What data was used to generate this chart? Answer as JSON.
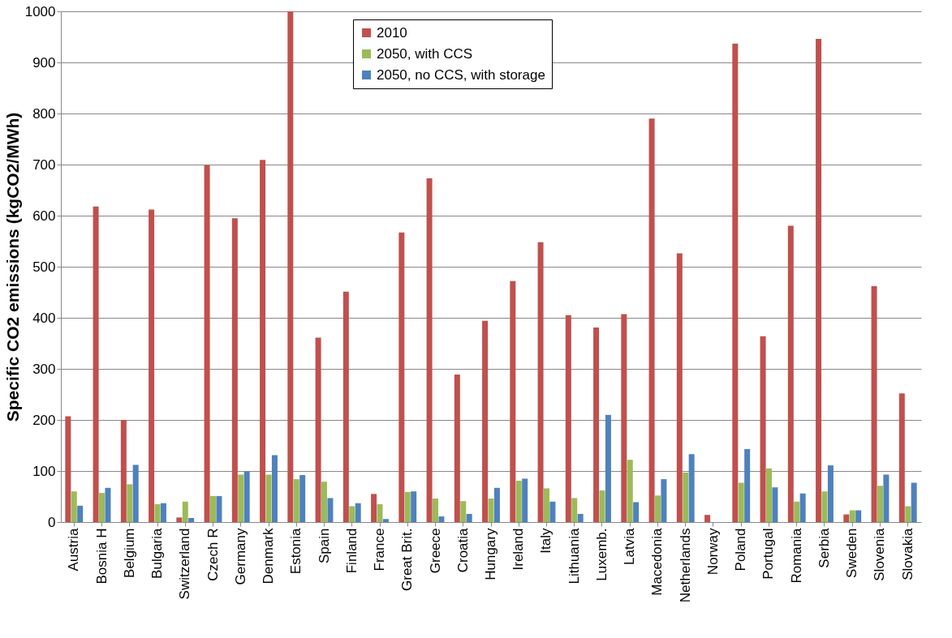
{
  "chart_data": {
    "type": "bar",
    "ylabel": "Specific CO2 emissions (kgCO2/MWh)",
    "categories": [
      "Austria",
      "Bosnia H",
      "Belgium",
      "Bulgaria",
      "Switzerland",
      "Czech R",
      "Germany",
      "Denmark",
      "Estonia",
      "Spain",
      "Finland",
      "France",
      "Great Brit.",
      "Greece",
      "Croatia",
      "Hungary",
      "Ireland",
      "Italy",
      "Lithuania",
      "Luxemb.",
      "Latvia",
      "Macedonia",
      "Netherlands",
      "Norway",
      "Poland",
      "Portugal",
      "Romania",
      "Serbia",
      "Sweden",
      "Slovenia",
      "Slovakia"
    ],
    "series": [
      {
        "name": "2010",
        "color": "#c0504d",
        "values": [
          207,
          618,
          200,
          612,
          9,
          699,
          595,
          709,
          1000,
          361,
          451,
          55,
          567,
          673,
          289,
          394,
          472,
          548,
          405,
          381,
          407,
          790,
          526,
          14,
          937,
          364,
          580,
          946,
          15,
          462,
          252
        ]
      },
      {
        "name": "2050, with CCS",
        "color": "#9bbb59",
        "values": [
          60,
          57,
          74,
          35,
          40,
          51,
          93,
          93,
          84,
          79,
          31,
          35,
          59,
          46,
          41,
          46,
          81,
          66,
          47,
          62,
          122,
          52,
          97,
          0,
          77,
          105,
          40,
          60,
          23,
          71,
          31
        ]
      },
      {
        "name": "2050, no CCS, with storage",
        "color": "#4f81bd",
        "values": [
          32,
          67,
          112,
          37,
          8,
          51,
          99,
          131,
          92,
          47,
          37,
          6,
          60,
          11,
          16,
          67,
          85,
          40,
          16,
          210,
          39,
          84,
          133,
          0,
          143,
          68,
          56,
          111,
          23,
          93,
          77
        ]
      }
    ],
    "ylim": [
      0,
      1000
    ],
    "yticks": [
      0,
      100,
      200,
      300,
      400,
      500,
      600,
      700,
      800,
      900,
      1000
    ],
    "grid": "y",
    "legend": "top"
  }
}
